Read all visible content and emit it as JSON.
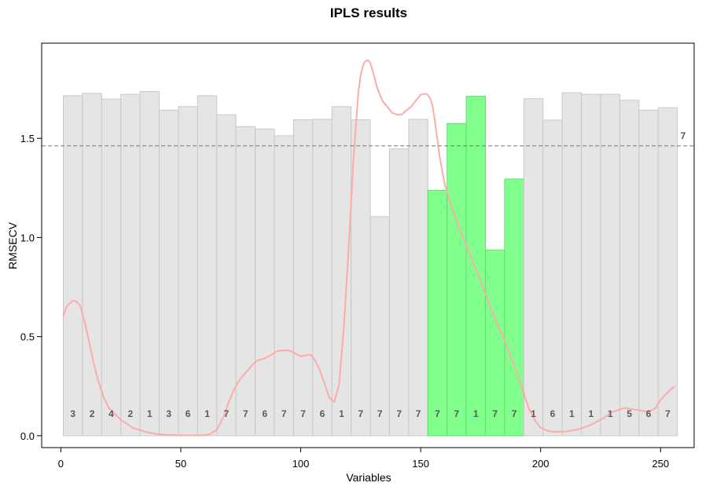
{
  "chart_data": {
    "type": "bar",
    "title": "IPLS results",
    "xlabel": "Variables",
    "ylabel": "RMSECV",
    "xlim": [
      -8,
      264
    ],
    "ylim": [
      -0.06,
      1.98
    ],
    "x_ticks": [
      0,
      50,
      100,
      150,
      200,
      250
    ],
    "y_ticks": [
      0.0,
      0.5,
      1.0,
      1.5
    ],
    "x_tick_labels": [
      "0",
      "50",
      "100",
      "150",
      "200",
      "250"
    ],
    "y_tick_labels": [
      "0.0",
      "0.5",
      "1.0",
      "1.5"
    ],
    "intervals": [
      {
        "start": 1,
        "end": 9,
        "rmsecv": 1.715,
        "components": "3",
        "selected": false
      },
      {
        "start": 9,
        "end": 17,
        "rmsecv": 1.727,
        "components": "2",
        "selected": false
      },
      {
        "start": 17,
        "end": 25,
        "rmsecv": 1.698,
        "components": "4",
        "selected": false
      },
      {
        "start": 25,
        "end": 33,
        "rmsecv": 1.722,
        "components": "2",
        "selected": false
      },
      {
        "start": 33,
        "end": 41,
        "rmsecv": 1.736,
        "components": "1",
        "selected": false
      },
      {
        "start": 41,
        "end": 49,
        "rmsecv": 1.642,
        "components": "3",
        "selected": false
      },
      {
        "start": 49,
        "end": 57,
        "rmsecv": 1.66,
        "components": "6",
        "selected": false
      },
      {
        "start": 57,
        "end": 65,
        "rmsecv": 1.715,
        "components": "1",
        "selected": false
      },
      {
        "start": 65,
        "end": 73,
        "rmsecv": 1.619,
        "components": "7",
        "selected": false
      },
      {
        "start": 73,
        "end": 81,
        "rmsecv": 1.559,
        "components": "7",
        "selected": false
      },
      {
        "start": 81,
        "end": 89,
        "rmsecv": 1.547,
        "components": "6",
        "selected": false
      },
      {
        "start": 89,
        "end": 97,
        "rmsecv": 1.513,
        "components": "7",
        "selected": false
      },
      {
        "start": 97,
        "end": 105,
        "rmsecv": 1.594,
        "components": "7",
        "selected": false
      },
      {
        "start": 105,
        "end": 113,
        "rmsecv": 1.596,
        "components": "6",
        "selected": false
      },
      {
        "start": 113,
        "end": 121,
        "rmsecv": 1.66,
        "components": "1",
        "selected": false
      },
      {
        "start": 121,
        "end": 129,
        "rmsecv": 1.594,
        "components": "7",
        "selected": false
      },
      {
        "start": 129,
        "end": 137,
        "rmsecv": 1.105,
        "components": "7",
        "selected": false
      },
      {
        "start": 137,
        "end": 145,
        "rmsecv": 1.447,
        "components": "7",
        "selected": false
      },
      {
        "start": 145,
        "end": 153,
        "rmsecv": 1.596,
        "components": "7",
        "selected": false
      },
      {
        "start": 153,
        "end": 161,
        "rmsecv": 1.238,
        "components": "7",
        "selected": true
      },
      {
        "start": 161,
        "end": 169,
        "rmsecv": 1.575,
        "components": "7",
        "selected": true
      },
      {
        "start": 169,
        "end": 177,
        "rmsecv": 1.712,
        "components": "1",
        "selected": true
      },
      {
        "start": 177,
        "end": 185,
        "rmsecv": 0.937,
        "components": "7",
        "selected": true
      },
      {
        "start": 185,
        "end": 193,
        "rmsecv": 1.295,
        "components": "7",
        "selected": true
      },
      {
        "start": 193,
        "end": 201,
        "rmsecv": 1.7,
        "components": "1",
        "selected": false
      },
      {
        "start": 201,
        "end": 209,
        "rmsecv": 1.592,
        "components": "6",
        "selected": false
      },
      {
        "start": 209,
        "end": 217,
        "rmsecv": 1.73,
        "components": "1",
        "selected": false
      },
      {
        "start": 217,
        "end": 225,
        "rmsecv": 1.722,
        "components": "1",
        "selected": false
      },
      {
        "start": 225,
        "end": 233,
        "rmsecv": 1.722,
        "components": "1",
        "selected": false
      },
      {
        "start": 233,
        "end": 241,
        "rmsecv": 1.692,
        "components": "5",
        "selected": false
      },
      {
        "start": 241,
        "end": 249,
        "rmsecv": 1.642,
        "components": "6",
        "selected": false
      },
      {
        "start": 249,
        "end": 257,
        "rmsecv": 1.655,
        "components": "7",
        "selected": false
      }
    ],
    "reference_line": {
      "rmsecv": 1.462,
      "components": "7",
      "style": "dashed"
    },
    "spectrum_curve": {
      "x": [
        1,
        2,
        3,
        4,
        5,
        6,
        7,
        8,
        10,
        12,
        14,
        16,
        18,
        20,
        25,
        30,
        35,
        40,
        45,
        50,
        55,
        60,
        62,
        65,
        68,
        70,
        72,
        75,
        78,
        80,
        82,
        85,
        88,
        90,
        92,
        95,
        97,
        100,
        102,
        104,
        106,
        108,
        110,
        112,
        114,
        116,
        118,
        120,
        122,
        124,
        125,
        126,
        127,
        128,
        129,
        130,
        132,
        134,
        136,
        138,
        140,
        142,
        144,
        146,
        148,
        150,
        152,
        153,
        154,
        155,
        156,
        158,
        160,
        163,
        166,
        170,
        175,
        180,
        185,
        190,
        192,
        195,
        198,
        200,
        203,
        205,
        210,
        215,
        220,
        225,
        230,
        235,
        240,
        245,
        248,
        250,
        253,
        256
      ],
      "y": [
        0.6,
        0.64,
        0.66,
        0.67,
        0.68,
        0.68,
        0.67,
        0.66,
        0.57,
        0.46,
        0.35,
        0.26,
        0.19,
        0.14,
        0.08,
        0.04,
        0.02,
        0.008,
        0.004,
        0.002,
        0.002,
        0.003,
        0.008,
        0.03,
        0.1,
        0.17,
        0.23,
        0.29,
        0.33,
        0.36,
        0.38,
        0.39,
        0.41,
        0.425,
        0.43,
        0.43,
        0.42,
        0.4,
        0.405,
        0.41,
        0.38,
        0.33,
        0.26,
        0.19,
        0.17,
        0.26,
        0.55,
        0.95,
        1.4,
        1.73,
        1.82,
        1.87,
        1.89,
        1.895,
        1.88,
        1.84,
        1.75,
        1.69,
        1.66,
        1.63,
        1.62,
        1.62,
        1.64,
        1.66,
        1.69,
        1.72,
        1.725,
        1.72,
        1.7,
        1.66,
        1.58,
        1.4,
        1.27,
        1.15,
        1.05,
        0.93,
        0.78,
        0.62,
        0.48,
        0.32,
        0.25,
        0.14,
        0.07,
        0.04,
        0.025,
        0.02,
        0.02,
        0.03,
        0.05,
        0.08,
        0.12,
        0.14,
        0.13,
        0.12,
        0.14,
        0.18,
        0.22,
        0.25
      ]
    },
    "colors": {
      "bar_default": "#e5e5e5",
      "bar_default_border": "#c8c8c8",
      "bar_selected": "#80ff8c",
      "bar_selected_border": "#6ad874",
      "curve": "#ffaaaa",
      "reference_line": "#777777",
      "bar_label": "#5a5a5a"
    },
    "grid": false,
    "legend": "none"
  }
}
